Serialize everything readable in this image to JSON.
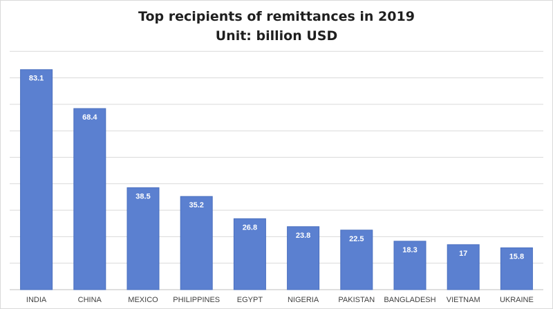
{
  "chart_data": {
    "type": "bar",
    "title": "Top recipients of remittances in 2019",
    "subtitle": "Unit: billion USD",
    "categories": [
      "INDIA",
      "CHINA",
      "MEXICO",
      "PHILIPPINES",
      "EGYPT",
      "NIGERIA",
      "PAKISTAN",
      "BANGLADESH",
      "VIETNAM",
      "UKRAINE"
    ],
    "values": [
      83.1,
      68.4,
      38.5,
      35.2,
      26.8,
      23.8,
      22.5,
      18.3,
      17,
      15.8
    ],
    "value_labels": [
      "83.1",
      "68.4",
      "38.5",
      "35.2",
      "26.8",
      "23.8",
      "22.5",
      "18.3",
      "17",
      "15.8"
    ],
    "ylim": [
      0,
      90
    ],
    "grid": true,
    "data_labels": "inside-top",
    "colors": {
      "bar": "#5b80d0",
      "bar_edge": "#4a6fbf",
      "grid": "#d9d9d9",
      "text": "#404040",
      "title": "#1f1f1f",
      "label": "#ffffff"
    }
  }
}
